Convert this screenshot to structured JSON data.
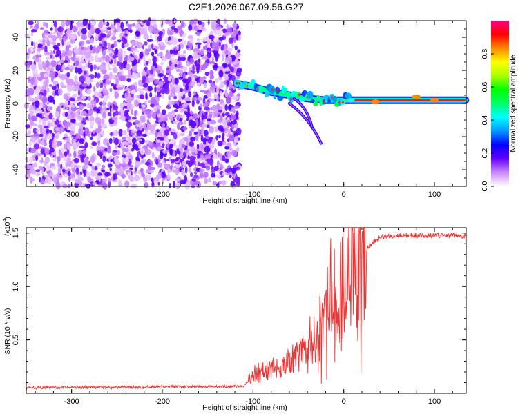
{
  "title": "C2E1.2026.067.09.56.G27",
  "chart_data": [
    {
      "type": "heatmap",
      "xlabel": "Height of straight line (km)",
      "ylabel": "Frequency (Hz)",
      "xlim": [
        -350,
        135
      ],
      "ylim": [
        -50,
        50
      ],
      "x_ticks": [
        "-300",
        "-200",
        "-100",
        "0",
        "100"
      ],
      "y_ticks": [
        "-40",
        "-20",
        "0",
        "20",
        "40"
      ],
      "colorbar": {
        "label": "Normalized spectral amplitude",
        "range": [
          0,
          1
        ],
        "ticks": [
          "0.0",
          "0.2",
          "0.4",
          "0.6",
          "0.8"
        ],
        "colors": [
          "#ffffff",
          "#cc88ff",
          "#6600ff",
          "#0000ff",
          "#0099ff",
          "#00ffff",
          "#00ff66",
          "#00ff00",
          "#aaff00",
          "#ffff00",
          "#ff8800",
          "#ff0000",
          "#ff0088"
        ]
      },
      "description_of_regions": {
        "noise_region_x": [
          -350,
          -115
        ],
        "signal_start_x": -118,
        "signal_track": [
          {
            "x": -118,
            "f": 12
          },
          {
            "x": -100,
            "f": 10
          },
          {
            "x": -80,
            "f": 7
          },
          {
            "x": -60,
            "f": 5
          },
          {
            "x": -40,
            "f": 3
          },
          {
            "x": -20,
            "f": 2
          },
          {
            "x": 0,
            "f": 2
          },
          {
            "x": 40,
            "f": 2
          },
          {
            "x": 80,
            "f": 2
          },
          {
            "x": 135,
            "f": 2
          }
        ],
        "side_lobes": [
          {
            "from_x": -60,
            "from_f": 0,
            "to_x": -25,
            "to_f": -24
          },
          {
            "from_x": -55,
            "from_f": 3,
            "to_x": -35,
            "to_f": -14
          }
        ]
      }
    },
    {
      "type": "line",
      "xlabel": "Height of straight line (km)",
      "ylabel": "SNR (10 * v/v)",
      "y_scale_label": "(x10",
      "y_scale_exponent": "4",
      "y_scale_close": ")",
      "xlim": [
        -350,
        135
      ],
      "ylim": [
        0,
        15500
      ],
      "x_ticks": [
        "-300",
        "-200",
        "-100",
        "0",
        "100"
      ],
      "y_ticks": [
        "0.5",
        "1.0",
        "1.5"
      ],
      "color": "#ee3333",
      "series": [
        {
          "x": [
            -350,
            -300,
            -250,
            -200,
            -150,
            -110,
            -100,
            -90,
            -80,
            -70,
            -60,
            -50,
            -40,
            -30,
            -20,
            -15,
            -10,
            -5,
            0,
            5,
            10,
            15,
            20,
            25,
            30,
            40,
            50,
            60,
            70,
            80,
            90,
            100,
            110,
            120,
            135
          ],
          "y": [
            500,
            550,
            550,
            600,
            600,
            650,
            1800,
            2000,
            2200,
            2500,
            3000,
            3500,
            4500,
            6000,
            8000,
            10000,
            11000,
            9500,
            10500,
            12000,
            12500,
            13000,
            11500,
            13500,
            14000,
            14600,
            14700,
            14750,
            14800,
            14800,
            14700,
            14800,
            14750,
            14800,
            14700
          ]
        }
      ]
    }
  ]
}
